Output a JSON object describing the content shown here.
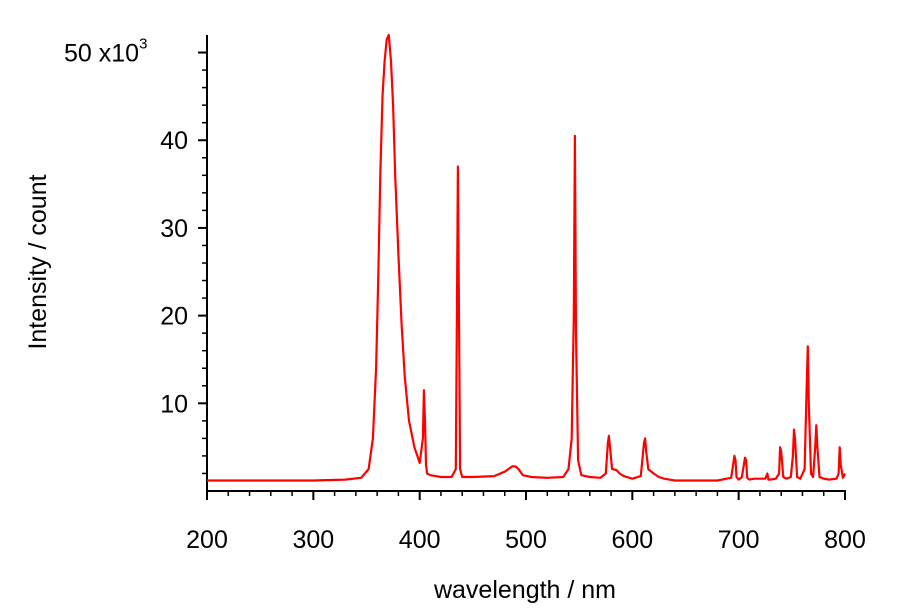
{
  "chart_data": {
    "type": "line",
    "title": "",
    "xlabel": "wavelength / nm",
    "ylabel": "Intensity / count",
    "xlim": [
      200,
      800
    ],
    "ylim": [
      0,
      52
    ],
    "y_unit": "x10",
    "y_unit_exponent": "3",
    "x_ticks": [
      200,
      300,
      400,
      500,
      600,
      700,
      800
    ],
    "y_ticks": [
      10,
      20,
      30,
      40,
      50
    ],
    "grid": false,
    "legend": "none",
    "line_color": "#ff0000",
    "series": [
      {
        "values_note": "intensity in thousands of counts",
        "x": [
          200,
          250,
          300,
          330,
          345,
          352,
          356,
          359,
          361,
          363,
          365,
          367,
          369,
          371,
          373,
          375,
          377,
          380,
          383,
          386,
          390,
          395,
          400,
          403,
          404,
          405,
          406,
          407,
          410,
          415,
          420,
          430,
          434,
          435,
          436,
          437,
          438,
          440,
          450,
          470,
          480,
          487,
          490,
          493,
          497,
          505,
          520,
          535,
          540,
          543,
          545,
          546,
          547,
          549,
          552,
          560,
          570,
          575,
          577,
          578,
          579,
          581,
          585,
          588,
          592,
          600,
          608,
          611,
          612,
          613,
          615,
          620,
          625,
          630,
          640,
          660,
          680,
          693,
          696,
          697,
          698,
          700,
          703,
          706,
          707,
          708,
          710,
          715,
          725,
          727,
          728,
          730,
          735,
          738,
          739,
          740,
          742,
          745,
          749,
          751,
          752,
          753,
          755,
          758,
          762,
          764,
          765,
          766,
          768,
          770,
          772,
          773,
          774,
          776,
          780,
          785,
          792,
          794,
          795,
          796,
          798,
          800
        ],
        "y": [
          1.2,
          1.2,
          1.2,
          1.3,
          1.5,
          2.5,
          6,
          14,
          24,
          36,
          45,
          49,
          51.5,
          52,
          49,
          44,
          36,
          27,
          19,
          13,
          8,
          5,
          3.2,
          6,
          11.5,
          8,
          3,
          2,
          1.8,
          1.7,
          1.6,
          1.6,
          2.5,
          20,
          37,
          20,
          2.5,
          1.6,
          1.6,
          1.7,
          2.2,
          2.8,
          2.8,
          2.5,
          1.8,
          1.6,
          1.5,
          1.6,
          2.5,
          6,
          20,
          40.5,
          18,
          3.5,
          1.8,
          1.6,
          1.5,
          2,
          5.5,
          6.3,
          5,
          2.5,
          2.4,
          2,
          1.7,
          1.4,
          1.7,
          5.5,
          6,
          4.5,
          2.5,
          2,
          1.6,
          1.4,
          1.2,
          1.2,
          1.2,
          1.5,
          4,
          3.5,
          1.6,
          1.3,
          1.6,
          3.8,
          3.5,
          1.5,
          1.3,
          1.4,
          1.4,
          2,
          1.3,
          1.3,
          1.4,
          2,
          5,
          4.5,
          1.6,
          1.4,
          1.6,
          4,
          7,
          6,
          1.6,
          1.4,
          2.5,
          12,
          16.5,
          10,
          2,
          1.6,
          5,
          7.5,
          5,
          1.6,
          1.4,
          1.3,
          1.4,
          2,
          5,
          3,
          1.5,
          2
        ]
      }
    ]
  }
}
